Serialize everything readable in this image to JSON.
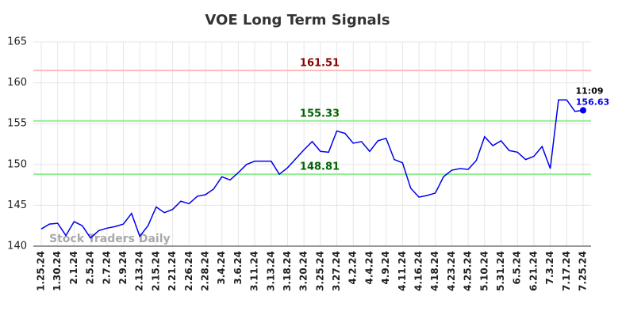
{
  "chart_data": {
    "type": "line",
    "title": "VOE Long Term Signals",
    "categories": [
      "1.25.24",
      null,
      "1.30.24",
      null,
      "2.1.24",
      null,
      "2.5.24",
      null,
      "2.7.24",
      null,
      "2.9.24",
      null,
      "2.13.24",
      null,
      "2.15.24",
      null,
      "2.21.24",
      null,
      "2.26.24",
      null,
      "2.28.24",
      null,
      "3.4.24",
      null,
      "3.6.24",
      null,
      "3.11.24",
      null,
      "3.13.24",
      null,
      "3.18.24",
      null,
      "3.20.24",
      null,
      "3.25.24",
      null,
      "3.27.24",
      null,
      "4.2.24",
      null,
      "4.4.24",
      null,
      "4.9.24",
      null,
      "4.11.24",
      null,
      "4.16.24",
      null,
      "4.18.24",
      null,
      "4.23.24",
      null,
      "4.25.24",
      null,
      "5.10.24",
      null,
      "5.31.24",
      null,
      "6.5.24",
      null,
      "6.21.24",
      null,
      "7.3.24",
      null,
      "7.17.24",
      null,
      "7.25.24"
    ],
    "series": [
      {
        "color": "#0000ee",
        "values": [
          142.1,
          142.7,
          142.8,
          141.3,
          143.0,
          142.5,
          141.0,
          141.9,
          142.2,
          142.4,
          142.7,
          144.0,
          141.2,
          142.5,
          144.8,
          144.1,
          144.5,
          145.5,
          145.2,
          146.1,
          146.3,
          147.0,
          148.5,
          148.1,
          149.0,
          150.0,
          150.4,
          150.4,
          150.4,
          148.8,
          149.6,
          150.7,
          151.8,
          152.8,
          151.6,
          151.5,
          154.1,
          153.8,
          152.6,
          152.8,
          151.6,
          152.9,
          153.2,
          150.6,
          150.2,
          147.1,
          146.0,
          146.2,
          146.5,
          148.5,
          149.3,
          149.5,
          149.4,
          150.5,
          153.4,
          152.3,
          152.9,
          151.7,
          151.5,
          150.6,
          151.0,
          152.2,
          149.5,
          157.9,
          157.9,
          156.5,
          156.63
        ]
      }
    ],
    "hlines": [
      {
        "value": 161.51,
        "color": "#ffbbbb",
        "label_color": "#8b0000"
      },
      {
        "value": 155.33,
        "color": "#90ee90",
        "label_color": "#006400"
      },
      {
        "value": 148.81,
        "color": "#90ee90",
        "label_color": "#006400"
      }
    ],
    "last_time": "11:09",
    "watermark": "Stock Traders Daily",
    "ylim": [
      140,
      165
    ],
    "yticks": [
      140,
      145,
      150,
      155,
      160,
      165
    ],
    "grid": true
  }
}
